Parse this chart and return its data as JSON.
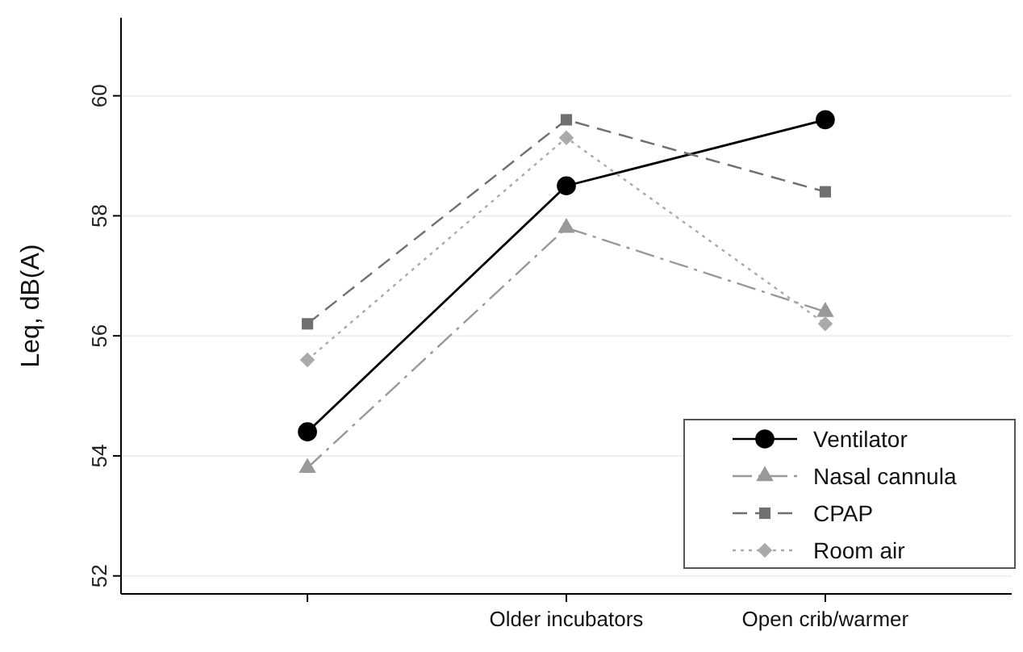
{
  "chart_data": {
    "type": "line",
    "ylabel": "Leq, dB(A)",
    "categories": [
      null,
      "Older incubators",
      "Open crib/warmer"
    ],
    "series": [
      {
        "name": "Ventilator",
        "color": "#000000",
        "values": [
          54.4,
          58.5,
          59.6
        ],
        "marker": "circle",
        "line_style": "solid"
      },
      {
        "name": "Nasal cannula",
        "color": "#999999",
        "values": [
          53.8,
          57.8,
          56.4
        ],
        "marker": "triangle",
        "line_style": "dashdot"
      },
      {
        "name": "CPAP",
        "color": "#707070",
        "values": [
          56.2,
          59.6,
          58.4
        ],
        "marker": "square",
        "line_style": "dashed"
      },
      {
        "name": "Room air",
        "color": "#aaaaaa",
        "values": [
          55.6,
          59.3,
          56.2
        ],
        "marker": "diamond",
        "line_style": "dotted"
      }
    ],
    "ylim": [
      51.7,
      61.3
    ],
    "yticks": [
      52,
      54,
      56,
      58,
      60
    ],
    "grid": "y",
    "legend": "bottom right"
  }
}
